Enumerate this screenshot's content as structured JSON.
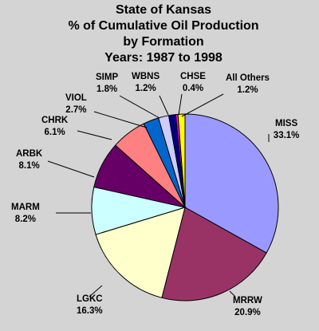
{
  "chart_data": {
    "type": "pie",
    "title": [
      "State of Kansas",
      "% of Cumulative Oil Production",
      "by Formation",
      "Years: 1987 to 1998"
    ],
    "slices": [
      {
        "name": "MISS",
        "value": 33.1,
        "value_label": "33.1%",
        "color": "#9a99ff"
      },
      {
        "name": "MRRW",
        "value": 20.9,
        "value_label": "20.9%",
        "color": "#993366"
      },
      {
        "name": "LGKC",
        "value": 16.3,
        "value_label": "16.3%",
        "color": "#ffffcc"
      },
      {
        "name": "MARM",
        "value": 8.2,
        "value_label": "8.2%",
        "color": "#ccffff"
      },
      {
        "name": "ARBK",
        "value": 8.1,
        "value_label": "8.1%",
        "color": "#660066"
      },
      {
        "name": "CHRK",
        "value": 6.1,
        "value_label": "6.1%",
        "color": "#ff8080"
      },
      {
        "name": "VIOL",
        "value": 2.7,
        "value_label": "2.7%",
        "color": "#0066cc"
      },
      {
        "name": "SIMP",
        "value": 1.8,
        "value_label": "1.8%",
        "color": "#ccccff"
      },
      {
        "name": "WBNS",
        "value": 1.2,
        "value_label": "1.2%",
        "color": "#000080"
      },
      {
        "name": "CHSE",
        "value": 0.4,
        "value_label": "0.4%",
        "color": "#ff00ff"
      },
      {
        "name": "All Others",
        "value": 1.2,
        "value_label": "1.2%",
        "color": "#ffff00"
      }
    ]
  }
}
